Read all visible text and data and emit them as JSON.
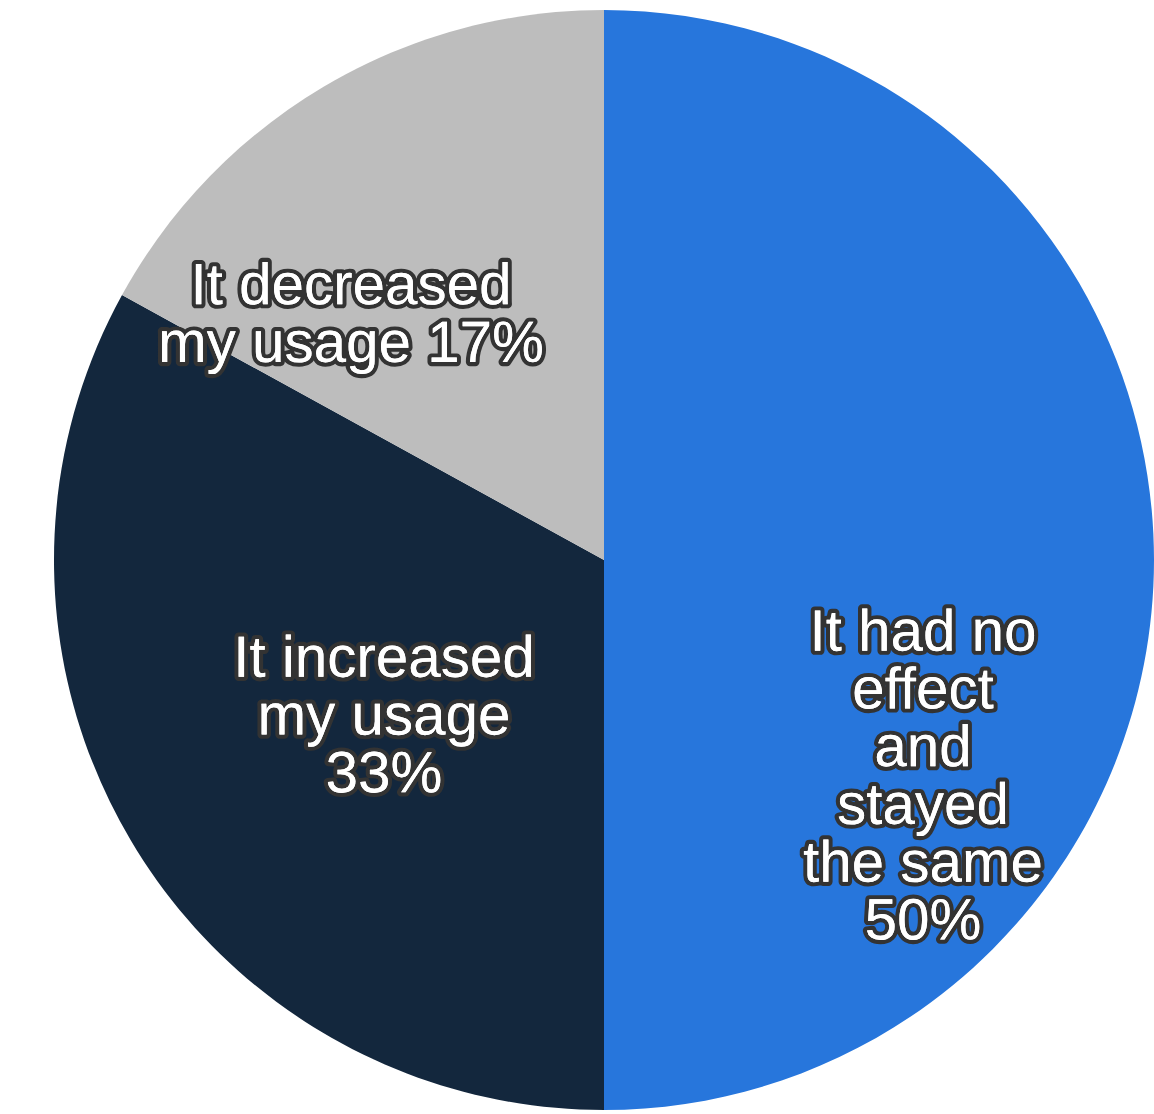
{
  "chart_data": {
    "type": "pie",
    "categories": [
      "It had no\neffect\nand\nstayed\nthe same",
      "It increased\nmy usage",
      "It decreased\nmy usage"
    ],
    "values": [
      50,
      33,
      17
    ],
    "colors": [
      "#2776dc",
      "#13273d",
      "#bdbdbd"
    ],
    "value_labels": [
      "50%",
      "33%",
      "17%"
    ],
    "legend": false
  }
}
